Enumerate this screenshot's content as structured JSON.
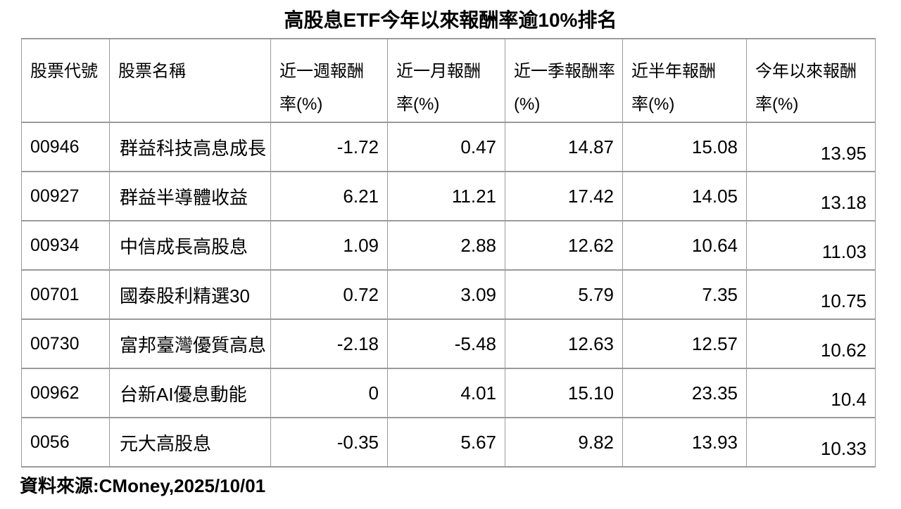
{
  "title": "高股息ETF今年以來報酬率逾10%排名",
  "source_note": "資料來源:CMoney,2025/10/01",
  "colors": {
    "border": "#9a9a9a",
    "text": "#000000",
    "background": "#ffffff"
  },
  "table": {
    "headers": [
      {
        "line1": "股票代號",
        "line2": ""
      },
      {
        "line1": "股票名稱",
        "line2": ""
      },
      {
        "line1": "近一週報酬",
        "line2": "率(%)"
      },
      {
        "line1": "近一月報酬",
        "line2": "率(%)"
      },
      {
        "line1": "近一季報酬率",
        "line2": "(%)"
      },
      {
        "line1": "近半年報酬",
        "line2": "率(%)"
      },
      {
        "line1": "今年以來報酬",
        "line2": "率(%)"
      }
    ],
    "rows": [
      {
        "code": "00946",
        "name": "群益科技高息成長",
        "week": "-1.72",
        "month": "0.47",
        "quarter": "14.87",
        "half": "15.08",
        "ytd": "13.95"
      },
      {
        "code": "00927",
        "name": "群益半導體收益",
        "week": "6.21",
        "month": "11.21",
        "quarter": "17.42",
        "half": "14.05",
        "ytd": "13.18"
      },
      {
        "code": "00934",
        "name": "中信成長高股息",
        "week": "1.09",
        "month": "2.88",
        "quarter": "12.62",
        "half": "10.64",
        "ytd": "11.03"
      },
      {
        "code": "00701",
        "name": "國泰股利精選30",
        "week": "0.72",
        "month": "3.09",
        "quarter": "5.79",
        "half": "7.35",
        "ytd": "10.75"
      },
      {
        "code": "00730",
        "name": "富邦臺灣優質高息",
        "week": "-2.18",
        "month": "-5.48",
        "quarter": "12.63",
        "half": "12.57",
        "ytd": "10.62"
      },
      {
        "code": "00962",
        "name": "台新AI優息動能",
        "week": "0",
        "month": "4.01",
        "quarter": "15.10",
        "half": "23.35",
        "ytd": "10.4"
      },
      {
        "code": "0056",
        "name": "元大高股息",
        "week": "-0.35",
        "month": "5.67",
        "quarter": "9.82",
        "half": "13.93",
        "ytd": "10.33"
      }
    ]
  },
  "chart_data": {
    "type": "table",
    "title": "高股息ETF今年以來報酬率逾10%排名",
    "columns": [
      "股票代號",
      "股票名稱",
      "近一週報酬率(%)",
      "近一月報酬率(%)",
      "近一季報酬率(%)",
      "近半年報酬率(%)",
      "今年以來報酬率(%)"
    ],
    "rows": [
      [
        "00946",
        "群益科技高息成長",
        -1.72,
        0.47,
        14.87,
        15.08,
        13.95
      ],
      [
        "00927",
        "群益半導體收益",
        6.21,
        11.21,
        17.42,
        14.05,
        13.18
      ],
      [
        "00934",
        "中信成長高股息",
        1.09,
        2.88,
        12.62,
        10.64,
        11.03
      ],
      [
        "00701",
        "國泰股利精選30",
        0.72,
        3.09,
        5.79,
        7.35,
        10.75
      ],
      [
        "00730",
        "富邦臺灣優質高息",
        -2.18,
        -5.48,
        12.63,
        12.57,
        10.62
      ],
      [
        "00962",
        "台新AI優息動能",
        0,
        4.01,
        15.1,
        23.35,
        10.4
      ],
      [
        "0056",
        "元大高股息",
        -0.35,
        5.67,
        9.82,
        13.93,
        10.33
      ]
    ],
    "source": "資料來源:CMoney,2025/10/01",
    "layout": {
      "grid": true,
      "header_rows": 1,
      "numeric_alignment": "right"
    }
  }
}
